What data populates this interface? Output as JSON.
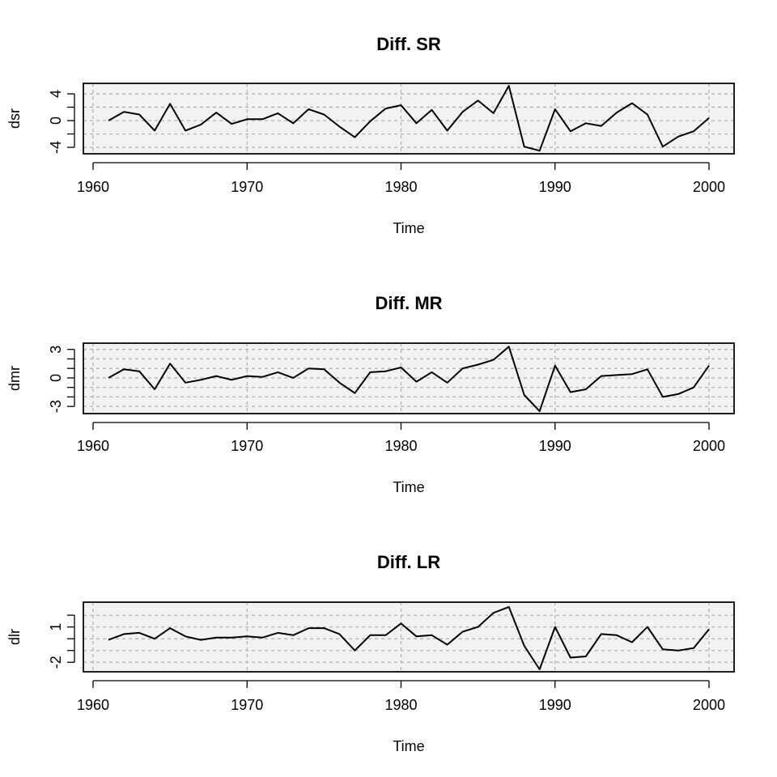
{
  "chart_data": [
    {
      "type": "line",
      "title": "Diff. SR",
      "xlabel": "Time",
      "ylabel": "dsr",
      "xlim": [
        1960,
        2000
      ],
      "ylim": [
        -4.6,
        5.2
      ],
      "x_ticks": [
        1960,
        1970,
        1980,
        1990,
        2000
      ],
      "y_ticks": [
        -4,
        0,
        4
      ],
      "y_tick_marks": [
        -4,
        -2,
        0,
        2,
        4
      ],
      "y_grid": [
        -4,
        -2,
        0,
        2,
        4
      ],
      "x_grid": [
        1960,
        1970,
        1980,
        1990,
        2000
      ],
      "grid": true,
      "x": [
        1961,
        1962,
        1963,
        1964,
        1965,
        1966,
        1967,
        1968,
        1969,
        1970,
        1971,
        1972,
        1973,
        1974,
        1975,
        1976,
        1977,
        1978,
        1979,
        1980,
        1981,
        1982,
        1983,
        1984,
        1985,
        1986,
        1987,
        1988,
        1989,
        1990,
        1991,
        1992,
        1993,
        1994,
        1995,
        1996,
        1997,
        1998,
        1999,
        2000
      ],
      "series": [
        {
          "values": [
            0.0,
            1.3,
            0.9,
            -1.5,
            2.5,
            -1.5,
            -0.6,
            1.2,
            -0.5,
            0.2,
            0.2,
            1.1,
            -0.4,
            1.7,
            0.9,
            -0.9,
            -2.5,
            -0.1,
            1.8,
            2.3,
            -0.4,
            1.6,
            -1.5,
            1.3,
            3.0,
            1.1,
            5.2,
            -3.9,
            -4.5,
            1.7,
            -1.6,
            -0.4,
            -0.8,
            1.2,
            2.6,
            0.9,
            -3.9,
            -2.4,
            -1.6,
            0.4
          ]
        }
      ]
    },
    {
      "type": "line",
      "title": "Diff. MR",
      "xlabel": "Time",
      "ylabel": "dmr",
      "xlim": [
        1960,
        2000
      ],
      "ylim": [
        -3.5,
        3.4
      ],
      "x_ticks": [
        1960,
        1970,
        1980,
        1990,
        2000
      ],
      "y_ticks": [
        -3,
        0,
        3
      ],
      "y_tick_marks": [
        -3,
        -2,
        -1,
        0,
        1,
        2,
        3
      ],
      "y_grid": [
        -3,
        -2,
        -1,
        0,
        1,
        2,
        3
      ],
      "x_grid": [
        1960,
        1970,
        1980,
        1990,
        2000
      ],
      "grid": true,
      "x": [
        1961,
        1962,
        1963,
        1964,
        1965,
        1966,
        1967,
        1968,
        1969,
        1970,
        1971,
        1972,
        1973,
        1974,
        1975,
        1976,
        1977,
        1978,
        1979,
        1980,
        1981,
        1982,
        1983,
        1984,
        1985,
        1986,
        1987,
        1988,
        1989,
        1990,
        1991,
        1992,
        1993,
        1994,
        1995,
        1996,
        1997,
        1998,
        1999,
        2000
      ],
      "series": [
        {
          "values": [
            0.0,
            0.9,
            0.7,
            -1.2,
            1.5,
            -0.5,
            -0.2,
            0.2,
            -0.2,
            0.2,
            0.1,
            0.6,
            0.0,
            1.0,
            0.9,
            -0.5,
            -1.6,
            0.6,
            0.7,
            1.1,
            -0.4,
            0.6,
            -0.5,
            1.0,
            1.4,
            1.9,
            3.3,
            -1.8,
            -3.5,
            1.3,
            -1.5,
            -1.2,
            0.2,
            0.3,
            0.4,
            0.9,
            -2.0,
            -1.7,
            -1.0,
            1.3
          ]
        }
      ]
    },
    {
      "type": "line",
      "title": "Diff. LR",
      "xlabel": "Time",
      "ylabel": "dlr",
      "xlim": [
        1960,
        2000
      ],
      "ylim": [
        -2.6,
        2.9
      ],
      "x_ticks": [
        1960,
        1970,
        1980,
        1990,
        2000
      ],
      "y_ticks": [
        -2,
        1
      ],
      "y_tick_marks": [
        -2,
        -1,
        0,
        1,
        2
      ],
      "y_grid": [
        -2,
        -1,
        0,
        1,
        2
      ],
      "x_grid": [
        1960,
        1970,
        1980,
        1990,
        2000
      ],
      "grid": true,
      "x": [
        1961,
        1962,
        1963,
        1964,
        1965,
        1966,
        1967,
        1968,
        1969,
        1970,
        1971,
        1972,
        1973,
        1974,
        1975,
        1976,
        1977,
        1978,
        1979,
        1980,
        1981,
        1982,
        1983,
        1984,
        1985,
        1986,
        1987,
        1988,
        1989,
        1990,
        1991,
        1992,
        1993,
        1994,
        1995,
        1996,
        1997,
        1998,
        1999,
        2000
      ],
      "series": [
        {
          "values": [
            -0.1,
            0.4,
            0.5,
            0.0,
            0.9,
            0.2,
            -0.1,
            0.1,
            0.1,
            0.2,
            0.1,
            0.5,
            0.3,
            0.9,
            0.9,
            0.4,
            -1.0,
            0.3,
            0.3,
            1.3,
            0.2,
            0.3,
            -0.5,
            0.6,
            1.0,
            2.2,
            2.7,
            -0.6,
            -2.6,
            1.0,
            -1.6,
            -1.5,
            0.4,
            0.3,
            -0.3,
            1.0,
            -0.9,
            -1.0,
            -0.8,
            0.8
          ]
        }
      ]
    }
  ]
}
